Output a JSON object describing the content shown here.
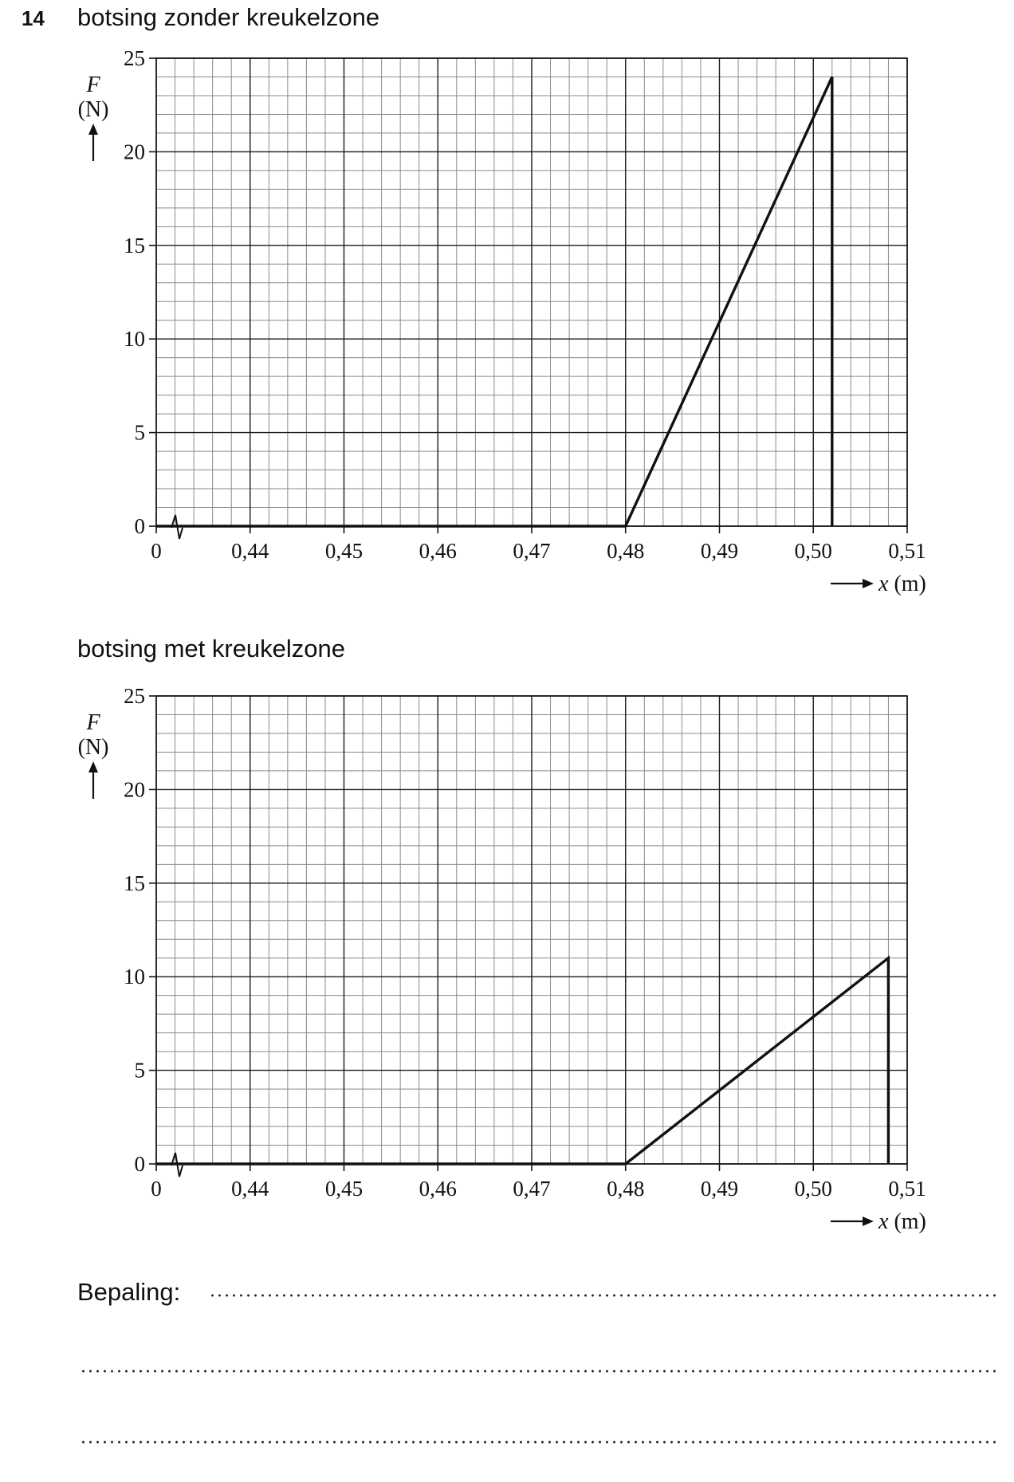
{
  "question_number": "14",
  "answer_label": "Bepaling:",
  "chart_data": [
    {
      "type": "line",
      "title": "botsing zonder kreukelzone",
      "ylabel_symbol": "F",
      "ylabel_unit": "(N)",
      "xlabel": "x (m)",
      "axis_break": true,
      "xlim": [
        0.43,
        0.51
      ],
      "ylim": [
        0,
        25
      ],
      "x_ticks": [
        0.43,
        0.44,
        0.45,
        0.46,
        0.47,
        0.48,
        0.49,
        0.5,
        0.51
      ],
      "x_tick_labels": [
        "0",
        "0,44",
        "0,45",
        "0,46",
        "0,47",
        "0,48",
        "0,49",
        "0,50",
        "0,51"
      ],
      "y_ticks": [
        0,
        5,
        10,
        15,
        20,
        25
      ],
      "y_tick_labels": [
        "0",
        "5",
        "10",
        "15",
        "20",
        "25"
      ],
      "grid": true,
      "series": [
        {
          "x": [
            0.43,
            0.48,
            0.502,
            0.502
          ],
          "y": [
            0,
            0,
            24,
            0
          ]
        }
      ]
    },
    {
      "type": "line",
      "title": "botsing met kreukelzone",
      "ylabel_symbol": "F",
      "ylabel_unit": "(N)",
      "xlabel": "x (m)",
      "axis_break": true,
      "xlim": [
        0.43,
        0.51
      ],
      "ylim": [
        0,
        25
      ],
      "x_ticks": [
        0.43,
        0.44,
        0.45,
        0.46,
        0.47,
        0.48,
        0.49,
        0.5,
        0.51
      ],
      "x_tick_labels": [
        "0",
        "0,44",
        "0,45",
        "0,46",
        "0,47",
        "0,48",
        "0,49",
        "0,50",
        "0,51"
      ],
      "y_ticks": [
        0,
        5,
        10,
        15,
        20,
        25
      ],
      "y_tick_labels": [
        "0",
        "5",
        "10",
        "15",
        "20",
        "25"
      ],
      "grid": true,
      "series": [
        {
          "x": [
            0.43,
            0.48,
            0.508,
            0.508
          ],
          "y": [
            0,
            0,
            11,
            0
          ]
        }
      ]
    }
  ]
}
